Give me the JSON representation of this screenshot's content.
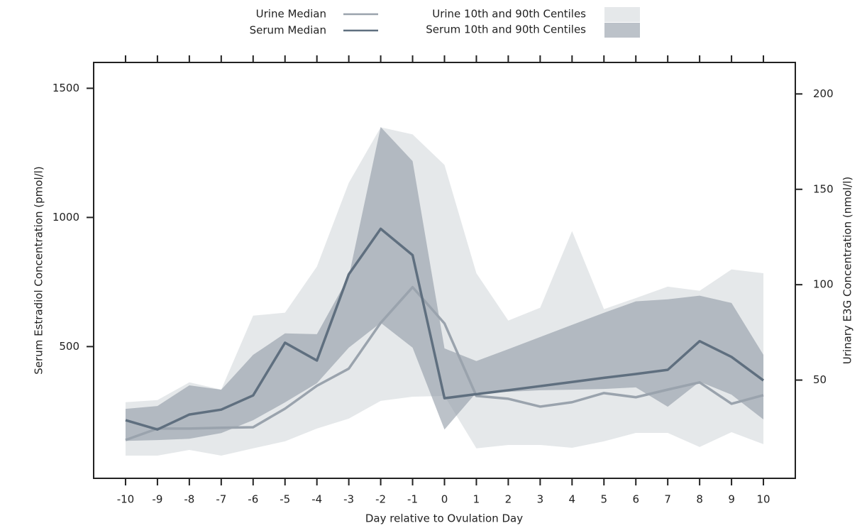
{
  "chart_data": {
    "type": "line",
    "x_label": "Day relative to Ovulation Day",
    "y_label": "Serum Estradiol Concentration (pmol/l)",
    "y2_label": "Urinary E3G Concentration (nmol/l)",
    "x": [
      -10,
      -9,
      -8,
      -7,
      -6,
      -5,
      -4,
      -3,
      -2,
      -1,
      0,
      1,
      2,
      3,
      4,
      5,
      6,
      7,
      8,
      9,
      10
    ],
    "xlim": [
      -11,
      11
    ],
    "xticks": [
      -10,
      -9,
      -8,
      -7,
      -6,
      -5,
      -4,
      -3,
      -2,
      -1,
      0,
      1,
      2,
      3,
      4,
      5,
      6,
      7,
      8,
      9,
      10
    ],
    "ylim": [
      -10,
      1600
    ],
    "yticks": [
      500,
      1000,
      1500
    ],
    "y2lim": [
      -1.5,
      216.5
    ],
    "y2ticks": [
      50,
      100,
      150,
      200
    ],
    "series": [
      {
        "name": "Urine Median",
        "kind": "line",
        "axis": "y2",
        "color": "#9aa3ad",
        "values": [
          18.6,
          24.6,
          24.6,
          25,
          25.3,
          35,
          47,
          56,
          80,
          98.7,
          79.7,
          41.7,
          40.2,
          36.1,
          38.4,
          43.2,
          41,
          45,
          48.8,
          37.6,
          42.1
        ]
      },
      {
        "name": "Serum Median",
        "kind": "line",
        "axis": "y",
        "color": "#5f6f7f",
        "values": [
          215,
          179,
          237,
          256,
          311,
          515,
          446,
          780,
          956,
          854,
          300,
          316,
          331,
          347,
          363,
          379,
          394,
          410,
          521,
          460,
          369
        ]
      },
      {
        "name": "Urine 10th and 90th Centiles",
        "kind": "band",
        "axis": "y2",
        "color": "#d3d8dc",
        "low": [
          10.4,
          10.4,
          13.4,
          10.4,
          14.2,
          17.9,
          24.6,
          29.8,
          39.1,
          41.3,
          41.7,
          14.2,
          16,
          16,
          14.5,
          17.9,
          22.3,
          22.3,
          14.9,
          22.7,
          16.4
        ],
        "high": [
          38.4,
          39.5,
          48.8,
          45,
          83.8,
          85.3,
          109.5,
          153.4,
          182.5,
          178.8,
          162.8,
          106,
          81.2,
          87.9,
          128.1,
          87.2,
          93,
          99,
          96.8,
          108,
          106
        ]
      },
      {
        "name": "Serum 10th and 90th Centiles",
        "kind": "band",
        "axis": "y",
        "color": "#8f99a5",
        "low": [
          135,
          138,
          143,
          165,
          215,
          284,
          358,
          496,
          592,
          496,
          179,
          322,
          325,
          331,
          333,
          336,
          342,
          267,
          364,
          314,
          218
        ],
        "high": [
          259,
          270,
          350,
          333,
          468,
          551,
          548,
          771,
          1350,
          1218,
          493,
          444,
          490,
          537,
          584,
          631,
          675,
          683,
          697,
          669,
          468
        ]
      }
    ]
  }
}
